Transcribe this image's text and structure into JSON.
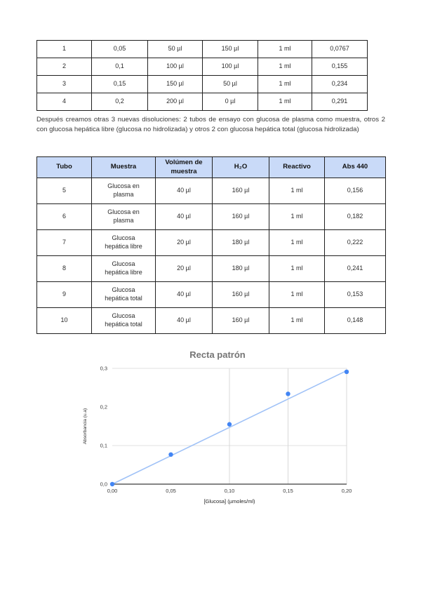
{
  "paragraph": "Después creamos otras 3 nuevas disoluciones: 2 tubos de ensayo con glucosa de plasma como muestra, otros 2 con glucosa hepática libre (glucosa no hidrolizada) y otros 2 con glucosa hepática total (glucosa hidrolizada)",
  "table1": {
    "rows": [
      [
        "1",
        "0,05",
        "50 µl",
        "150 µl",
        "1 ml",
        "0,0767"
      ],
      [
        "2",
        "0,1",
        "100 µl",
        "100 µl",
        "1 ml",
        "0,155"
      ],
      [
        "3",
        "0,15",
        "150 µl",
        "50 µl",
        "1 ml",
        "0,234"
      ],
      [
        "4",
        "0,2",
        "200 µl",
        "0 µl",
        "1 ml",
        "0,291"
      ]
    ]
  },
  "table2": {
    "headers": [
      "Tubo",
      "Muestra",
      "Volúmen de\nmuestra",
      "H₂O",
      "Reactivo",
      "Abs 440"
    ],
    "rows": [
      [
        "5",
        "Glucosa en\nplasma",
        "40 µl",
        "160 µl",
        "1 ml",
        "0,156"
      ],
      [
        "6",
        "Glucosa en\nplasma",
        "40 µl",
        "160 µl",
        "1 ml",
        "0,182"
      ],
      [
        "7",
        "Glucosa\nhepática libre",
        "20 µl",
        "180 µl",
        "1 ml",
        "0,222"
      ],
      [
        "8",
        "Glucosa\nhepática libre",
        "20 µl",
        "180 µl",
        "1 ml",
        "0,241"
      ],
      [
        "9",
        "Glucosa\nhepática total",
        "40 µl",
        "160 µl",
        "1 ml",
        "0,153"
      ],
      [
        "10",
        "Glucosa\nhepática total",
        "40 µl",
        "160 µl",
        "1 ml",
        "0,148"
      ]
    ]
  },
  "chart_data": {
    "type": "scatter",
    "title": "Recta patrón",
    "xlabel": "[Glucosa] (µmoles/ml)",
    "ylabel": "Absorbancia (u.a)",
    "x": [
      0,
      0.05,
      0.1,
      0.15,
      0.2
    ],
    "y": [
      0,
      0.0767,
      0.155,
      0.234,
      0.291
    ],
    "xlim": [
      0,
      0.2
    ],
    "ylim": [
      0,
      0.3
    ],
    "x_ticks": {
      "values": [
        0,
        0.05,
        0.1,
        0.15,
        0.2
      ],
      "labels": [
        "0,00",
        "0,05",
        "0,10",
        "0,15",
        "0,20"
      ]
    },
    "y_ticks": {
      "values": [
        0,
        0.1,
        0.2,
        0.3
      ],
      "labels": [
        "0,0",
        "0,1",
        "0,2",
        "0,3"
      ]
    },
    "v_gridlines": [
      0.1,
      0.15,
      0.2
    ],
    "h_gridlines": [
      0.1,
      0.3
    ],
    "trendline": {
      "x1": 0,
      "y1": 0,
      "x2": 0.2,
      "y2": 0.294
    },
    "colors": {
      "point": "#4285f4",
      "trendline": "#a0c2f7",
      "grid_h": "#e2e2e2",
      "grid_v": "#d8d8d8",
      "axis": "#3c3c3c",
      "title": "#757575"
    },
    "legend": "none",
    "grid": true
  }
}
